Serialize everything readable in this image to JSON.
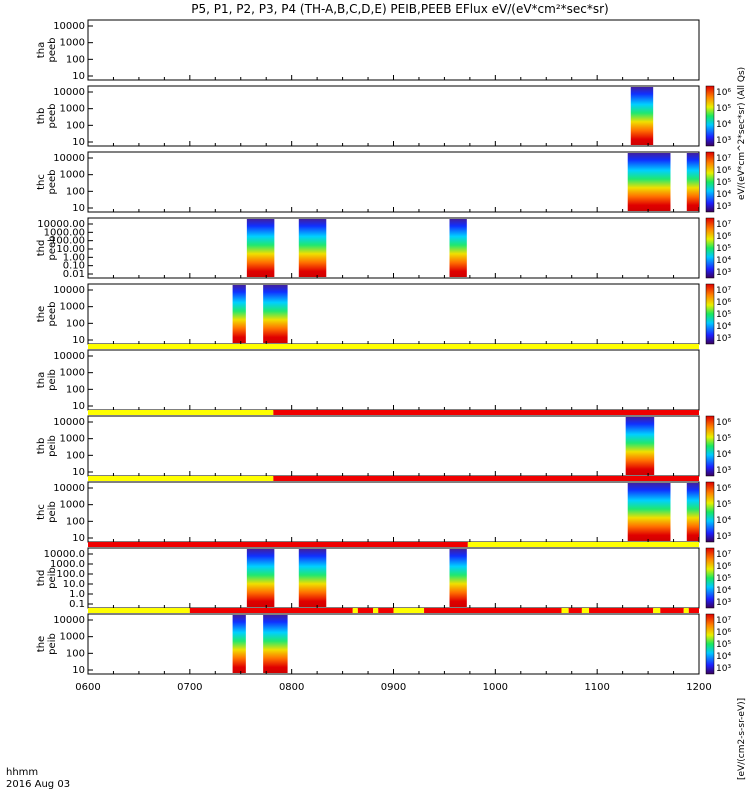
{
  "chart_data": {
    "type": "heatmap",
    "title": "P5, P1, P2, P3, P4 (TH-A,B,C,D,E) PEIB,PEEB EFlux eV/(eV*cm²*sec*sr)",
    "x_tick_labels": [
      "0600",
      "0700",
      "0800",
      "0900",
      "1000",
      "1100",
      "1200"
    ],
    "x_range_hours": [
      6,
      12
    ],
    "footer": {
      "label1": "hhmm",
      "label2": "2016 Aug 03"
    },
    "colorbar_unit": "[eV/(cm2-s-sr-eV)]",
    "side_label": "eV/(eV*cm^2*sec*sr) (All Qs)",
    "panels": [
      {
        "ylabel": "tha\npeeb",
        "yticks": [
          "10000",
          "1000",
          "100",
          "10"
        ],
        "colorbar": false,
        "blocks": []
      },
      {
        "ylabel": "thb\npeeb",
        "yticks": [
          "10000",
          "1000",
          "100",
          "10"
        ],
        "colorbar": true,
        "cbar_ticks": [
          "10⁶",
          "10⁵",
          "10⁴",
          "10³"
        ],
        "blocks": [
          {
            "t0": 11.33,
            "t1": 11.55
          }
        ]
      },
      {
        "ylabel": "thc\npeeb",
        "yticks": [
          "10000",
          "1000",
          "100",
          "10"
        ],
        "colorbar": true,
        "cbar_ticks": [
          "10⁷",
          "10⁶",
          "10⁵",
          "10⁴",
          "10³"
        ],
        "blocks": [
          {
            "t0": 11.3,
            "t1": 11.72
          },
          {
            "t0": 11.88,
            "t1": 12.0
          }
        ]
      },
      {
        "ylabel": "thd\npeeb",
        "yticks": [
          "10000.00",
          "1000.00",
          "100.00",
          "10.00",
          "1.00",
          "0.10",
          "0.01"
        ],
        "colorbar": true,
        "cbar_ticks": [
          "10⁷",
          "10⁶",
          "10⁵",
          "10⁴",
          "10³"
        ],
        "blocks": [
          {
            "t0": 7.56,
            "t1": 7.83
          },
          {
            "t0": 8.07,
            "t1": 8.34
          },
          {
            "t0": 9.55,
            "t1": 9.72
          }
        ]
      },
      {
        "ylabel": "the\npeeb",
        "yticks": [
          "10000",
          "1000",
          "100",
          "10"
        ],
        "colorbar": true,
        "cbar_ticks": [
          "10⁷",
          "10⁶",
          "10⁵",
          "10⁴",
          "10³"
        ],
        "blocks": [
          {
            "t0": 7.42,
            "t1": 7.55
          },
          {
            "t0": 7.72,
            "t1": 7.96
          }
        ]
      },
      {
        "ylabel": "tha\npeib",
        "yticks": [
          "10000",
          "1000",
          "100",
          "10"
        ],
        "colorbar": false,
        "blocks": [],
        "mode_bar": [
          {
            "t0": 6.0,
            "t1": 12.0,
            "mode": "yellow"
          }
        ]
      },
      {
        "ylabel": "thb\npeib",
        "yticks": [
          "10000",
          "1000",
          "100",
          "10"
        ],
        "colorbar": true,
        "cbar_ticks": [
          "10⁶",
          "10⁵",
          "10⁴",
          "10³"
        ],
        "blocks": [
          {
            "t0": 11.28,
            "t1": 11.56
          }
        ],
        "mode_bar": [
          {
            "t0": 6.0,
            "t1": 7.82,
            "mode": "yellow"
          },
          {
            "t0": 7.82,
            "t1": 12.0,
            "mode": "red"
          }
        ]
      },
      {
        "ylabel": "thc\npeib",
        "yticks": [
          "10000",
          "1000",
          "100",
          "10"
        ],
        "colorbar": true,
        "cbar_ticks": [
          "10⁶",
          "10⁵",
          "10⁴",
          "10³"
        ],
        "blocks": [
          {
            "t0": 11.3,
            "t1": 11.72
          },
          {
            "t0": 11.88,
            "t1": 12.0
          }
        ],
        "mode_bar": [
          {
            "t0": 6.0,
            "t1": 7.82,
            "mode": "yellow"
          },
          {
            "t0": 7.82,
            "t1": 12.0,
            "mode": "red"
          }
        ]
      },
      {
        "ylabel": "thd\npeib",
        "yticks": [
          "10000.0",
          "1000.0",
          "100.0",
          "10.0",
          "1.0",
          "0.1"
        ],
        "colorbar": true,
        "cbar_ticks": [
          "10⁷",
          "10⁶",
          "10⁵",
          "10⁴",
          "10³"
        ],
        "blocks": [
          {
            "t0": 7.56,
            "t1": 7.83
          },
          {
            "t0": 8.07,
            "t1": 8.34
          },
          {
            "t0": 9.55,
            "t1": 9.72
          }
        ],
        "mode_bar": [
          {
            "t0": 6.0,
            "t1": 9.73,
            "mode": "red"
          },
          {
            "t0": 9.73,
            "t1": 12.0,
            "mode": "yellow"
          }
        ]
      },
      {
        "ylabel": "the\npeib",
        "yticks": [
          "10000",
          "1000",
          "100",
          "10"
        ],
        "colorbar": true,
        "cbar_ticks": [
          "10⁷",
          "10⁶",
          "10⁵",
          "10⁴",
          "10³"
        ],
        "blocks": [
          {
            "t0": 7.42,
            "t1": 7.55
          },
          {
            "t0": 7.72,
            "t1": 7.96
          }
        ],
        "mode_bar": [
          {
            "t0": 6.0,
            "t1": 7.0,
            "mode": "yellow"
          },
          {
            "t0": 7.0,
            "t1": 8.6,
            "mode": "red"
          },
          {
            "t0": 8.6,
            "t1": 8.65,
            "mode": "yellow"
          },
          {
            "t0": 8.65,
            "t1": 8.8,
            "mode": "red"
          },
          {
            "t0": 8.8,
            "t1": 8.85,
            "mode": "yellow"
          },
          {
            "t0": 8.85,
            "t1": 9.0,
            "mode": "red"
          },
          {
            "t0": 9.0,
            "t1": 9.3,
            "mode": "yellow"
          },
          {
            "t0": 9.3,
            "t1": 10.65,
            "mode": "red"
          },
          {
            "t0": 10.65,
            "t1": 10.72,
            "mode": "yellow"
          },
          {
            "t0": 10.72,
            "t1": 10.85,
            "mode": "red"
          },
          {
            "t0": 10.85,
            "t1": 10.92,
            "mode": "yellow"
          },
          {
            "t0": 10.92,
            "t1": 11.55,
            "mode": "red"
          },
          {
            "t0": 11.55,
            "t1": 11.62,
            "mode": "yellow"
          },
          {
            "t0": 11.62,
            "t1": 11.85,
            "mode": "red"
          },
          {
            "t0": 11.85,
            "t1": 11.9,
            "mode": "yellow"
          },
          {
            "t0": 11.9,
            "t1": 12.0,
            "mode": "red"
          }
        ]
      }
    ]
  }
}
